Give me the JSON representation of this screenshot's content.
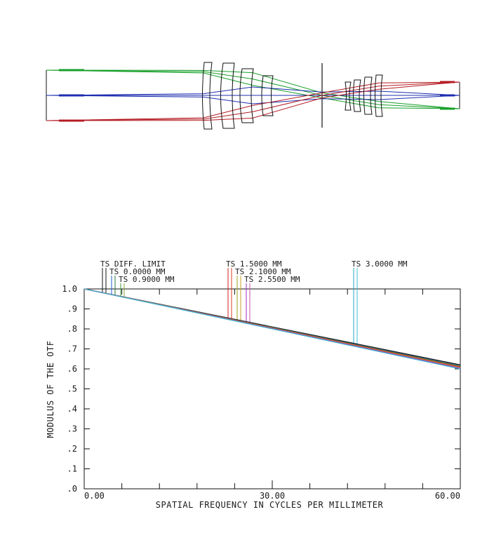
{
  "layout_diagram": {
    "ray_colors": [
      "#18a02a",
      "#1f2fb0",
      "#b51d24"
    ],
    "stroke_color": "#111111"
  },
  "chart_data": {
    "type": "line",
    "title": "",
    "xlabel": "SPATIAL FREQUENCY IN CYCLES PER MILLIMETER",
    "ylabel": "MODULUS OF THE OTF",
    "xlim": [
      0,
      60
    ],
    "ylim": [
      0,
      1.0
    ],
    "x_tick_labels": [
      "0.00",
      "30.00",
      "60.00"
    ],
    "x_tick_values": [
      0,
      30,
      60
    ],
    "x_minor_ticks": [
      6,
      12,
      18,
      24,
      36,
      42,
      48,
      54
    ],
    "y_tick_labels": [
      ".0",
      ".1",
      ".2",
      ".3",
      ".4",
      ".5",
      ".6",
      ".7",
      ".8",
      ".9",
      "1.0"
    ],
    "y_tick_values": [
      0,
      0.1,
      0.2,
      0.3,
      0.4,
      0.5,
      0.6,
      0.7,
      0.8,
      0.9,
      1.0
    ],
    "grid": false,
    "legend_entries": [
      {
        "label": "TS DIFF. LIMIT",
        "colors": [
          "#111111",
          "#111111"
        ],
        "row": 0
      },
      {
        "label": "TS 0.0000 MM",
        "colors": [
          "#1f5fd0",
          "#2a7a3a"
        ],
        "row": 1
      },
      {
        "label": "TS 0.9000 MM",
        "colors": [
          "#3a9a3a",
          "#8aa838"
        ],
        "row": 2
      },
      {
        "label": "TS 1.5000 MM",
        "colors": [
          "#d02020",
          "#d8401a"
        ],
        "row": 0
      },
      {
        "label": "TS 2.1000 MM",
        "colors": [
          "#9aa020",
          "#c8a020"
        ],
        "row": 1
      },
      {
        "label": "TS 2.5500 MM",
        "colors": [
          "#a030c0",
          "#c850b0"
        ],
        "row": 2
      },
      {
        "label": "TS 3.0000 MM",
        "colors": [
          "#20a8c0",
          "#40c0d8"
        ],
        "row": 0
      }
    ],
    "series": [
      {
        "name": "TS DIFF. LIMIT",
        "color": "#111111",
        "x": [
          0,
          60
        ],
        "y": [
          1.0,
          0.62
        ]
      },
      {
        "name": "TS 0.0000 MM",
        "color": "#2050c8",
        "x": [
          0,
          60
        ],
        "y": [
          1.0,
          0.615
        ]
      },
      {
        "name": "TS 0.9000 MM",
        "color": "#3a9a3a",
        "x": [
          0,
          60
        ],
        "y": [
          1.0,
          0.613
        ]
      },
      {
        "name": "TS 1.5000 MM",
        "color": "#d02020",
        "x": [
          0,
          60
        ],
        "y": [
          1.0,
          0.61
        ]
      },
      {
        "name": "TS 2.1000 MM",
        "color": "#c8a020",
        "x": [
          0,
          60
        ],
        "y": [
          1.0,
          0.607
        ]
      },
      {
        "name": "TS 2.5500 MM",
        "color": "#a030c0",
        "x": [
          0,
          60
        ],
        "y": [
          1.0,
          0.604
        ]
      },
      {
        "name": "TS 3.0000 MM",
        "color": "#40b8d0",
        "x": [
          0,
          60
        ],
        "y": [
          1.0,
          0.6
        ]
      }
    ]
  }
}
